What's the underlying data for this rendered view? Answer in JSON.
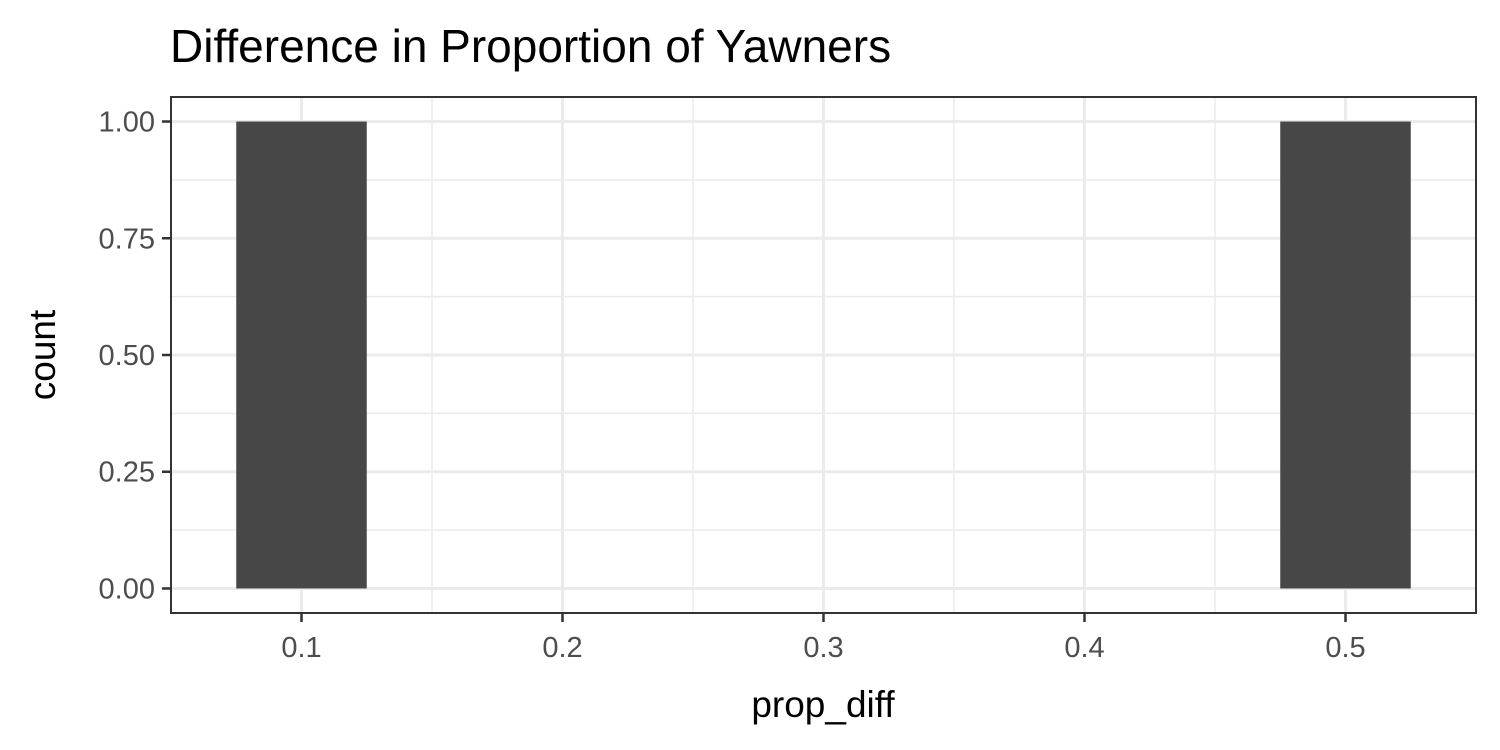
{
  "chart_data": {
    "type": "bar",
    "title": "Difference in Proportion of Yawners",
    "xlabel": "prop_diff",
    "ylabel": "count",
    "x": [
      0.1,
      0.5
    ],
    "values": [
      1,
      1
    ],
    "bar_width": 0.05,
    "xlim": [
      0.05,
      0.55
    ],
    "ylim": [
      -0.0525,
      1.0525
    ],
    "x_ticks": [
      0.1,
      0.2,
      0.3,
      0.4,
      0.5
    ],
    "x_tick_labels": [
      "0.1",
      "0.2",
      "0.3",
      "0.4",
      "0.5"
    ],
    "x_minor_ticks": [
      0.15,
      0.25,
      0.35,
      0.45
    ],
    "y_ticks": [
      0,
      0.25,
      0.5,
      0.75,
      1
    ],
    "y_tick_labels": [
      "0.00",
      "0.25",
      "0.50",
      "0.75",
      "1.00"
    ],
    "y_minor_ticks": [
      0.125,
      0.375,
      0.625,
      0.875
    ],
    "grid": true,
    "bar_color": "#474747",
    "panel_background": "#ffffff",
    "grid_color": "#ebebeb",
    "border_color": "#333333"
  }
}
